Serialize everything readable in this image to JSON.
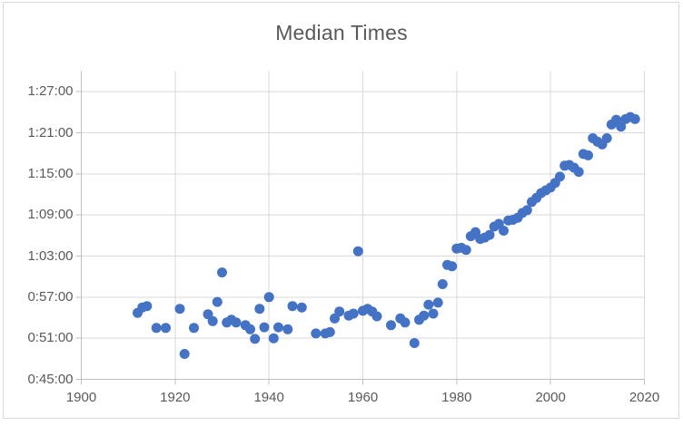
{
  "chart_data": {
    "type": "scatter",
    "title": "Median Times",
    "series_name": "Median Times",
    "marker_color": "#4472C4",
    "grid": true,
    "legend": "none",
    "x_axis": {
      "min": 1900,
      "max": 2020,
      "tick_interval": 20,
      "ticks": [
        1900,
        1920,
        1940,
        1960,
        1980,
        2000,
        2020
      ]
    },
    "y_axis": {
      "min": "0:45:00",
      "max": "1:30:00",
      "major_unit": "0:06:00",
      "ticks": [
        "0:45:00",
        "0:51:00",
        "0:57:00",
        "1:03:00",
        "1:09:00",
        "1:15:00",
        "1:21:00",
        "1:27:00"
      ]
    },
    "points": [
      [
        1912,
        "0:54:42"
      ],
      [
        1913,
        "0:55:30"
      ],
      [
        1914,
        "0:55:42"
      ],
      [
        1916,
        "0:52:30"
      ],
      [
        1918,
        "0:52:30"
      ],
      [
        1921,
        "0:55:18"
      ],
      [
        1922,
        "0:48:42"
      ],
      [
        1924,
        "0:52:30"
      ],
      [
        1927,
        "0:54:30"
      ],
      [
        1928,
        "0:53:30"
      ],
      [
        1929,
        "0:56:18"
      ],
      [
        1930,
        "1:00:36"
      ],
      [
        1931,
        "0:53:18"
      ],
      [
        1932,
        "0:53:42"
      ],
      [
        1933,
        "0:53:18"
      ],
      [
        1935,
        "0:52:54"
      ],
      [
        1936,
        "0:52:18"
      ],
      [
        1937,
        "0:50:54"
      ],
      [
        1938,
        "0:55:18"
      ],
      [
        1939,
        "0:52:36"
      ],
      [
        1940,
        "0:57:00"
      ],
      [
        1941,
        "0:51:00"
      ],
      [
        1942,
        "0:52:36"
      ],
      [
        1944,
        "0:52:18"
      ],
      [
        1945,
        "0:55:42"
      ],
      [
        1947,
        "0:55:30"
      ],
      [
        1950,
        "0:51:42"
      ],
      [
        1952,
        "0:51:42"
      ],
      [
        1953,
        "0:51:54"
      ],
      [
        1954,
        "0:53:54"
      ],
      [
        1955,
        "0:54:54"
      ],
      [
        1957,
        "0:54:18"
      ],
      [
        1958,
        "0:54:36"
      ],
      [
        1959,
        "1:03:42"
      ],
      [
        1960,
        "0:55:00"
      ],
      [
        1961,
        "0:55:18"
      ],
      [
        1962,
        "0:54:54"
      ],
      [
        1963,
        "0:54:12"
      ],
      [
        1966,
        "0:52:54"
      ],
      [
        1968,
        "0:53:54"
      ],
      [
        1969,
        "0:53:18"
      ],
      [
        1971,
        "0:50:18"
      ],
      [
        1972,
        "0:53:42"
      ],
      [
        1973,
        "0:54:18"
      ],
      [
        1974,
        "0:55:54"
      ],
      [
        1975,
        "0:54:36"
      ],
      [
        1976,
        "0:56:12"
      ],
      [
        1977,
        "0:58:54"
      ],
      [
        1978,
        "1:01:42"
      ],
      [
        1979,
        "1:01:30"
      ],
      [
        1980,
        "1:04:06"
      ],
      [
        1981,
        "1:04:12"
      ],
      [
        1982,
        "1:03:54"
      ],
      [
        1983,
        "1:05:54"
      ],
      [
        1984,
        "1:06:30"
      ],
      [
        1985,
        "1:05:30"
      ],
      [
        1986,
        "1:05:42"
      ],
      [
        1987,
        "1:06:06"
      ],
      [
        1988,
        "1:07:18"
      ],
      [
        1989,
        "1:07:42"
      ],
      [
        1990,
        "1:06:42"
      ],
      [
        1991,
        "1:08:12"
      ],
      [
        1992,
        "1:08:18"
      ],
      [
        1993,
        "1:08:36"
      ],
      [
        1994,
        "1:09:18"
      ],
      [
        1995,
        "1:09:42"
      ],
      [
        1996,
        "1:10:54"
      ],
      [
        1997,
        "1:11:30"
      ],
      [
        1998,
        "1:12:12"
      ],
      [
        1999,
        "1:12:36"
      ],
      [
        2000,
        "1:13:00"
      ],
      [
        2001,
        "1:13:42"
      ],
      [
        2002,
        "1:14:36"
      ],
      [
        2003,
        "1:16:12"
      ],
      [
        2004,
        "1:16:18"
      ],
      [
        2005,
        "1:15:54"
      ],
      [
        2006,
        "1:15:18"
      ],
      [
        2007,
        "1:17:54"
      ],
      [
        2008,
        "1:17:42"
      ],
      [
        2009,
        "1:20:12"
      ],
      [
        2010,
        "1:19:42"
      ],
      [
        2011,
        "1:19:18"
      ],
      [
        2012,
        "1:20:12"
      ],
      [
        2013,
        "1:22:12"
      ],
      [
        2014,
        "1:22:54"
      ],
      [
        2015,
        "1:21:54"
      ],
      [
        2016,
        "1:23:00"
      ],
      [
        2017,
        "1:23:18"
      ],
      [
        2018,
        "1:23:00"
      ]
    ]
  },
  "colors": {
    "gridline": "#D9D9D9",
    "axis": "#BFBFBF",
    "label": "#595959",
    "frame": "#D9D9D9",
    "marker": "#4472C4"
  }
}
